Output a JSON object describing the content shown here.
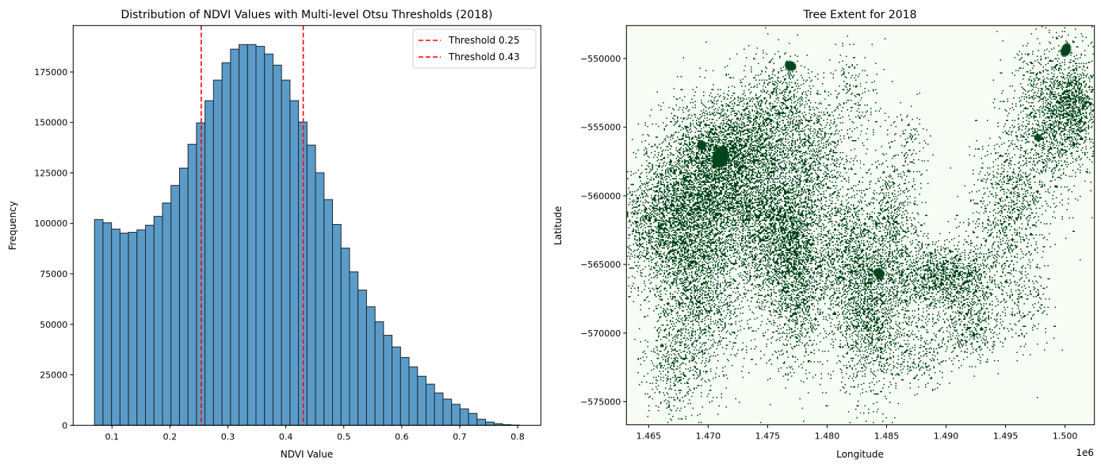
{
  "chart_data": [
    {
      "type": "bar",
      "title": "Distribution of NDVI Values with Multi-level Otsu Thresholds (2018)",
      "xlabel": "NDVI Value",
      "ylabel": "Frequency",
      "xlim": [
        0.033,
        0.84
      ],
      "ylim": [
        0,
        198000
      ],
      "xticks": [
        "0.1",
        "0.2",
        "0.3",
        "0.4",
        "0.5",
        "0.6",
        "0.7",
        "0.8"
      ],
      "yticks": [
        "0",
        "25000",
        "50000",
        "75000",
        "100000",
        "125000",
        "150000",
        "175000"
      ],
      "bin_start": 0.0698,
      "bin_width": 0.01467,
      "values": [
        101900,
        100300,
        97200,
        95200,
        95600,
        96800,
        99100,
        103500,
        110100,
        118800,
        127400,
        139200,
        149800,
        160800,
        171000,
        179600,
        186300,
        188600,
        188600,
        187700,
        183900,
        178400,
        171000,
        160800,
        150200,
        138800,
        125100,
        111800,
        99500,
        87800,
        76000,
        67000,
        58700,
        51300,
        44600,
        38800,
        33600,
        28900,
        24300,
        20400,
        16000,
        13000,
        10400,
        8100,
        5900,
        3000,
        1600,
        800,
        300,
        100
      ],
      "bar_color": "#5b9bc8",
      "edge_color": "#1f2a33",
      "thresholds": [
        {
          "value": 0.254,
          "label": "Threshold 0.25",
          "color": "#ff0000"
        },
        {
          "value": 0.43,
          "label": "Threshold 0.43",
          "color": "#ff0000"
        }
      ],
      "legend_position": "top-right",
      "grid": false
    },
    {
      "type": "heatmap",
      "title": "Tree Extent for 2018",
      "xlabel": "Longitude",
      "ylabel": "Latitude",
      "x_offset_label": "1e6",
      "xlim": [
        1.46313,
        1.50247
      ],
      "ylim": [
        -576684,
        -547595
      ],
      "xticks": [
        1.465,
        1.47,
        1.475,
        1.48,
        1.485,
        1.49,
        1.495,
        1.5
      ],
      "xtick_labels": [
        "1.465",
        "1.470",
        "1.475",
        "1.480",
        "1.485",
        "1.490",
        "1.495",
        "1.500"
      ],
      "yticks": [
        -550000,
        -555000,
        -560000,
        -565000,
        -570000,
        -575000
      ],
      "ytick_labels": [
        "−550000",
        "−555000",
        "−560000",
        "−565000",
        "−570000",
        "−575000"
      ],
      "colormap": "Greens",
      "background_color": "#f7fcf5",
      "tree_color": "#00441b",
      "grid": false
    }
  ]
}
